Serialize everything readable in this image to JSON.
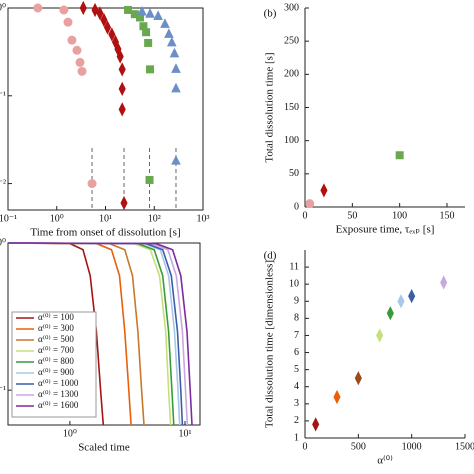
{
  "chart_data": [
    {
      "type": "scatter",
      "xlabel": "Time from onset of dissolution [s]",
      "xscale": "log",
      "yscale": "log",
      "xlim": [
        0.1,
        1000
      ],
      "ylim": [
        0.005,
        1
      ],
      "xticks": [
        {
          "value": 0.1,
          "label": "10⁻¹"
        },
        {
          "value": 1,
          "label": "10⁰"
        },
        {
          "value": 10,
          "label": "10¹"
        },
        {
          "value": 100,
          "label": "10²"
        },
        {
          "value": 1000,
          "label": "10³"
        }
      ],
      "yticks": [
        {
          "value": 1,
          "label": "10⁰"
        },
        {
          "value": 0.1,
          "label": "10⁻¹"
        },
        {
          "value": 0.01,
          "label": "10⁻²"
        }
      ],
      "vlines": [
        5.3,
        24,
        80,
        279
      ],
      "series": [
        {
          "marker": "circle",
          "color": "#e8a0a0",
          "x": [
            0.41,
            1.4,
            1.7,
            2.05,
            2.6,
            3.0,
            3.3,
            5.3
          ],
          "values": [
            1,
            0.95,
            0.69,
            0.43,
            0.33,
            0.24,
            0.19,
            0.01
          ]
        },
        {
          "marker": "diamond",
          "color": "#b01010",
          "x": [
            3.5,
            6.1,
            7.7,
            9.3,
            11,
            13.5,
            16,
            18,
            20,
            22,
            22,
            22,
            24
          ],
          "values": [
            1,
            0.95,
            0.87,
            0.73,
            0.6,
            0.5,
            0.41,
            0.34,
            0.28,
            0.2,
            0.12,
            0.07,
            0.006
          ]
        },
        {
          "marker": "square",
          "color": "#6aa84f",
          "x": [
            29,
            40,
            51,
            60,
            68,
            75,
            82,
            80
          ],
          "values": [
            0.95,
            0.85,
            0.78,
            0.62,
            0.53,
            0.4,
            0.2,
            0.011
          ]
        },
        {
          "marker": "triangle",
          "color": "#6b8fc7",
          "x": [
            56,
            82,
            120,
            166,
            200,
            229,
            260,
            279,
            279,
            279
          ],
          "values": [
            0.9,
            0.85,
            0.8,
            0.65,
            0.5,
            0.4,
            0.3,
            0.2,
            0.12,
            0.018
          ]
        }
      ]
    },
    {
      "type": "scatter",
      "panel_label": "(b)",
      "xlabel": "Exposure time, τₑₓₚ [s]",
      "ylabel": "Total dissolution time [s]",
      "xlim": [
        0,
        169
      ],
      "ylim": [
        0,
        300
      ],
      "xticks": [
        0,
        50,
        100,
        150
      ],
      "yticks": [
        0,
        50,
        100,
        150,
        200,
        250,
        300
      ],
      "series": [
        {
          "marker": "circle",
          "color": "#e8a0a0",
          "x": [
            5
          ],
          "values": [
            5
          ]
        },
        {
          "marker": "diamond",
          "color": "#b01010",
          "x": [
            20
          ],
          "values": [
            25
          ]
        },
        {
          "marker": "square",
          "color": "#6aa84f",
          "x": [
            100
          ],
          "values": [
            78
          ]
        }
      ]
    },
    {
      "type": "line",
      "xlabel": "Scaled time",
      "xscale": "log",
      "yscale": "log",
      "xlim": [
        0.29,
        13.5
      ],
      "ylim": [
        0.058,
        1
      ],
      "xticks": [
        {
          "value": 1,
          "label": "10⁰"
        },
        {
          "value": 10,
          "label": "10¹"
        }
      ],
      "yticks": [
        {
          "value": 1,
          "label": "10⁰"
        },
        {
          "value": 0.1,
          "label": "10⁻¹"
        }
      ],
      "series": [
        {
          "name": "α⁽⁰⁾ = 100",
          "color": "#a31515",
          "x": [
            0.29,
            1.0,
            1.3,
            1.5,
            1.7,
            1.85,
            1.95
          ],
          "values": [
            1,
            0.99,
            0.9,
            0.6,
            0.25,
            0.1,
            0.058
          ]
        },
        {
          "name": "α⁽⁰⁾ = 300",
          "color": "#e8600a",
          "x": [
            0.29,
            1.7,
            2.3,
            2.7,
            3.0,
            3.25,
            3.4
          ],
          "values": [
            1,
            0.99,
            0.9,
            0.6,
            0.25,
            0.1,
            0.058
          ]
        },
        {
          "name": "α⁽⁰⁾ = 500",
          "color": "#c8782a",
          "x": [
            0.29,
            2.2,
            3.0,
            3.5,
            3.9,
            4.2,
            4.4
          ],
          "values": [
            1,
            0.99,
            0.9,
            0.6,
            0.25,
            0.1,
            0.058
          ]
        },
        {
          "name": "α⁽⁰⁾ = 700",
          "color": "#c5e07a",
          "x": [
            0.29,
            3.6,
            5.0,
            6.0,
            6.8,
            7.2,
            7.5
          ],
          "values": [
            1,
            0.99,
            0.9,
            0.6,
            0.25,
            0.1,
            0.058
          ]
        },
        {
          "name": "α⁽⁰⁾ = 800",
          "color": "#3a9a3a",
          "x": [
            0.29,
            3.9,
            5.4,
            6.4,
            7.2,
            7.7,
            8.0
          ],
          "values": [
            1,
            0.99,
            0.9,
            0.6,
            0.25,
            0.1,
            0.058
          ]
        },
        {
          "name": "α⁽⁰⁾ = 900",
          "color": "#a9c7e8",
          "x": [
            0.29,
            4.4,
            6.1,
            7.2,
            8.1,
            8.7,
            9.0
          ],
          "values": [
            1,
            0.99,
            0.9,
            0.6,
            0.25,
            0.1,
            0.058
          ]
        },
        {
          "name": "α⁽⁰⁾ = 1000",
          "color": "#3b5ea8",
          "x": [
            0.29,
            4.6,
            6.4,
            7.6,
            8.6,
            9.2,
            9.5
          ],
          "values": [
            1,
            0.99,
            0.9,
            0.6,
            0.25,
            0.1,
            0.058
          ]
        },
        {
          "name": "α⁽⁰⁾ = 1300",
          "color": "#c9a8e0",
          "x": [
            0.29,
            5.1,
            7.1,
            8.4,
            9.5,
            10.1,
            10.5
          ],
          "values": [
            1,
            0.99,
            0.9,
            0.6,
            0.25,
            0.1,
            0.058
          ]
        },
        {
          "name": "α⁽⁰⁾ = 1600",
          "color": "#7b2c9e",
          "x": [
            0.29,
            5.6,
            7.8,
            9.2,
            10.4,
            11.1,
            11.5
          ],
          "values": [
            1,
            0.99,
            0.9,
            0.6,
            0.25,
            0.1,
            0.058
          ]
        }
      ]
    },
    {
      "type": "scatter",
      "panel_label": "(d)",
      "xlabel": "α⁽⁰⁾",
      "ylabel": "Total dissolution time [dimensionless]",
      "xlim": [
        0,
        1500
      ],
      "ylim": [
        1,
        12
      ],
      "xticks": [
        0,
        500,
        1000,
        1500
      ],
      "yticks": [
        1,
        2,
        3,
        4,
        5,
        6,
        7,
        8,
        9,
        10,
        11
      ],
      "series": [
        {
          "marker": "diamond",
          "colors": [
            "#a31515",
            "#e8600a",
            "#9c4a1a",
            "#c5e07a",
            "#3a9a3a",
            "#a9c7e8",
            "#3b5ea8",
            "#c9a8e0"
          ],
          "x": [
            100,
            300,
            500,
            700,
            800,
            900,
            1000,
            1300
          ],
          "values": [
            1.8,
            3.4,
            4.5,
            7.0,
            8.3,
            9.0,
            9.3,
            10.1
          ]
        }
      ]
    }
  ]
}
